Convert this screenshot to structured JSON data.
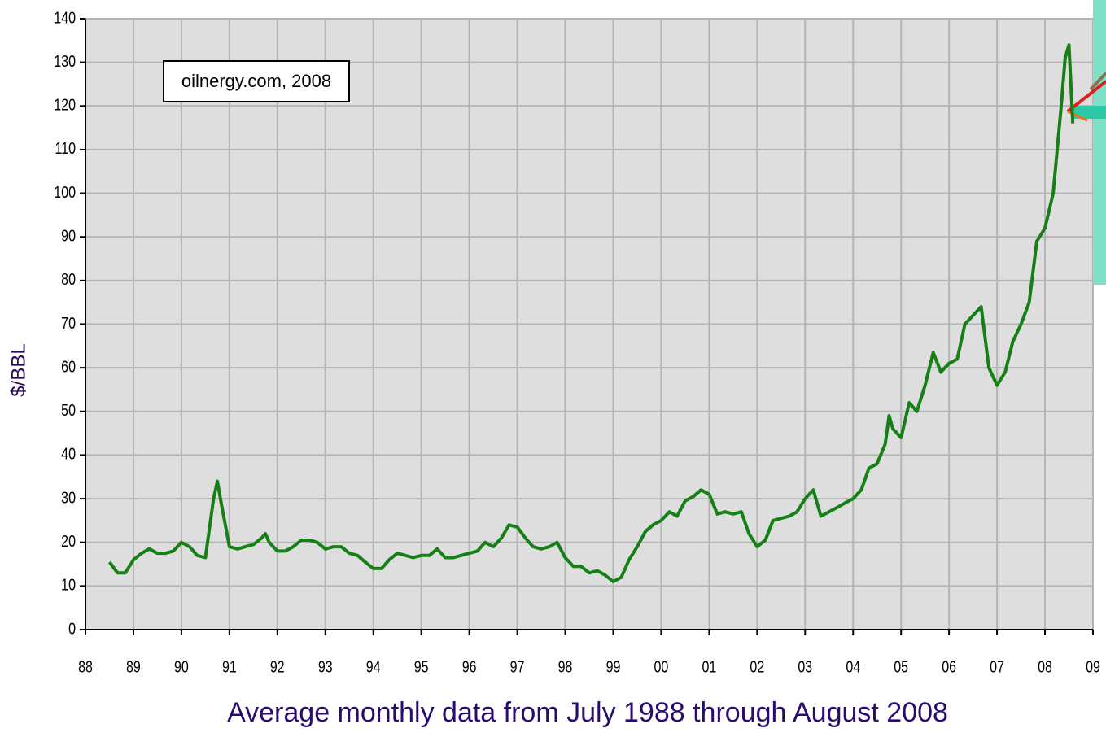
{
  "chart_data": {
    "type": "line",
    "annotation": "oilnergy.com, 2008",
    "ylabel": "$/BBL",
    "xlabel": "Average monthly data from July 1988 through August 2008",
    "color": "#158015",
    "grid": true,
    "ylim": [
      0,
      140
    ],
    "yticks": [
      0,
      10,
      20,
      30,
      40,
      50,
      60,
      70,
      80,
      90,
      100,
      110,
      120,
      130,
      140
    ],
    "xlim": [
      1988,
      2009
    ],
    "xticks": [
      {
        "value": 1988,
        "label": "88"
      },
      {
        "value": 1989,
        "label": "89"
      },
      {
        "value": 1990,
        "label": "90"
      },
      {
        "value": 1991,
        "label": "91"
      },
      {
        "value": 1992,
        "label": "92"
      },
      {
        "value": 1993,
        "label": "93"
      },
      {
        "value": 1994,
        "label": "94"
      },
      {
        "value": 1995,
        "label": "95"
      },
      {
        "value": 1996,
        "label": "96"
      },
      {
        "value": 1997,
        "label": "97"
      },
      {
        "value": 1998,
        "label": "98"
      },
      {
        "value": 1999,
        "label": "99"
      },
      {
        "value": 2000,
        "label": "00"
      },
      {
        "value": 2001,
        "label": "01"
      },
      {
        "value": 2002,
        "label": "02"
      },
      {
        "value": 2003,
        "label": "03"
      },
      {
        "value": 2004,
        "label": "04"
      },
      {
        "value": 2005,
        "label": "05"
      },
      {
        "value": 2006,
        "label": "06"
      },
      {
        "value": 2007,
        "label": "07"
      },
      {
        "value": 2008,
        "label": "08"
      },
      {
        "value": 2009,
        "label": "09"
      }
    ],
    "x": [
      1988.5,
      1988.67,
      1988.83,
      1989.0,
      1989.17,
      1989.33,
      1989.5,
      1989.67,
      1989.83,
      1990.0,
      1990.17,
      1990.33,
      1990.5,
      1990.67,
      1990.75,
      1990.83,
      1991.0,
      1991.17,
      1991.33,
      1991.5,
      1991.67,
      1991.75,
      1991.83,
      1992.0,
      1992.17,
      1992.33,
      1992.5,
      1992.67,
      1992.83,
      1993.0,
      1993.17,
      1993.33,
      1993.5,
      1993.67,
      1993.83,
      1994.0,
      1994.17,
      1994.33,
      1994.5,
      1994.67,
      1994.83,
      1995.0,
      1995.17,
      1995.33,
      1995.5,
      1995.67,
      1995.83,
      1996.0,
      1996.17,
      1996.33,
      1996.5,
      1996.67,
      1996.83,
      1997.0,
      1997.17,
      1997.33,
      1997.5,
      1997.67,
      1997.83,
      1998.0,
      1998.17,
      1998.33,
      1998.5,
      1998.67,
      1998.83,
      1999.0,
      1999.17,
      1999.33,
      1999.5,
      1999.67,
      1999.83,
      2000.0,
      2000.17,
      2000.33,
      2000.5,
      2000.67,
      2000.83,
      2001.0,
      2001.17,
      2001.33,
      2001.5,
      2001.67,
      2001.83,
      2002.0,
      2002.17,
      2002.33,
      2002.5,
      2002.67,
      2002.83,
      2003.0,
      2003.17,
      2003.33,
      2003.5,
      2003.67,
      2003.83,
      2004.0,
      2004.17,
      2004.33,
      2004.5,
      2004.67,
      2004.75,
      2004.83,
      2005.0,
      2005.17,
      2005.33,
      2005.5,
      2005.67,
      2005.83,
      2006.0,
      2006.17,
      2006.33,
      2006.5,
      2006.67,
      2006.83,
      2007.0,
      2007.17,
      2007.33,
      2007.5,
      2007.67,
      2007.83,
      2008.0,
      2008.17,
      2008.33,
      2008.42,
      2008.5,
      2008.58
    ],
    "values": [
      15.5,
      13,
      13,
      16,
      17.5,
      18.5,
      17.5,
      17.5,
      18,
      20,
      19,
      17,
      16.5,
      30,
      34,
      29,
      19,
      18.5,
      19,
      19.5,
      21,
      22,
      20,
      18,
      18,
      19,
      20.5,
      20.5,
      20,
      18.5,
      19,
      19,
      17.5,
      17,
      15.5,
      14,
      14,
      16,
      17.5,
      17,
      16.5,
      17,
      17,
      18.5,
      16.5,
      16.5,
      17,
      17.5,
      18,
      20,
      19,
      21,
      24,
      23.5,
      21,
      19,
      18.5,
      19,
      20,
      16.5,
      14.5,
      14.5,
      13,
      13.5,
      12.5,
      11,
      12,
      16,
      19,
      22.5,
      24,
      25,
      27,
      26,
      29.5,
      30.5,
      32,
      31,
      26.5,
      27,
      26.5,
      27,
      22,
      19,
      20.5,
      25,
      25.5,
      26,
      27,
      30,
      32,
      26,
      27,
      28,
      29,
      30,
      32,
      37,
      38,
      42.5,
      49,
      46,
      44,
      52,
      50,
      56,
      63.5,
      59,
      61,
      62,
      70,
      72,
      74,
      60,
      56,
      59,
      66,
      70,
      75,
      89,
      92,
      100,
      119,
      131,
      134,
      116
    ]
  }
}
